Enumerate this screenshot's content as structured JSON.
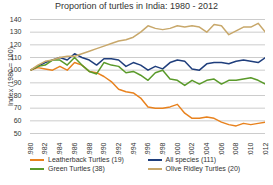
{
  "chart_data": {
    "type": "line",
    "title": "Proportion of turtles in India: 1980 - 2012",
    "y_label": "Index (1980 = 100)",
    "x": [
      1980,
      1981,
      1982,
      1983,
      1984,
      1985,
      1986,
      1987,
      1988,
      1989,
      1990,
      1991,
      1992,
      1993,
      1994,
      1995,
      1996,
      1997,
      1998,
      1999,
      2000,
      2001,
      2002,
      2003,
      2004,
      2005,
      2006,
      2007,
      2008,
      2009,
      2010,
      2011,
      2012
    ],
    "xlim": [
      1980,
      2012
    ],
    "xticks": [
      1980,
      1982,
      1984,
      1986,
      1988,
      1990,
      1992,
      1994,
      1996,
      1998,
      2000,
      2002,
      2004,
      2006,
      2008,
      2010,
      2012
    ],
    "ylim": [
      50,
      140
    ],
    "yticks": [
      50,
      60,
      70,
      80,
      90,
      100,
      110,
      120,
      130,
      140
    ],
    "grid": true,
    "legend": "bottom",
    "series": [
      {
        "name": "Leatherback Turtles (19)",
        "color": "#e8821e",
        "values": [
          100,
          102,
          101,
          100,
          103,
          100,
          106,
          104,
          99,
          98,
          95,
          91,
          85,
          83,
          82,
          78,
          71,
          70,
          70,
          71,
          73,
          66,
          62,
          62,
          63,
          62,
          59,
          57,
          56,
          58,
          57,
          58,
          59
        ]
      },
      {
        "name": "All species (111)",
        "color": "#1f3e7c",
        "values": [
          100,
          103,
          106,
          108,
          110,
          108,
          113,
          110,
          108,
          104,
          109,
          109,
          108,
          103,
          106,
          104,
          100,
          103,
          101,
          106,
          108,
          107,
          101,
          100,
          105,
          106,
          106,
          105,
          107,
          108,
          107,
          106,
          110
        ]
      },
      {
        "name": "Green Turtles (38)",
        "color": "#5a9a2a",
        "values": [
          100,
          103,
          104,
          108,
          108,
          104,
          110,
          104,
          99,
          97,
          106,
          104,
          103,
          98,
          99,
          96,
          92,
          98,
          100,
          93,
          92,
          88,
          92,
          89,
          92,
          93,
          89,
          92,
          92,
          93,
          94,
          92,
          89
        ]
      },
      {
        "name": "Olive Ridley Turtles (20)",
        "color": "#c8a86b",
        "values": [
          100,
          104,
          107,
          108,
          110,
          111,
          111,
          113,
          115,
          117,
          119,
          121,
          123,
          124,
          126,
          130,
          135,
          133,
          132,
          133,
          135,
          134,
          135,
          134,
          130,
          136,
          135,
          128,
          131,
          134,
          134,
          137,
          130
        ]
      }
    ]
  }
}
